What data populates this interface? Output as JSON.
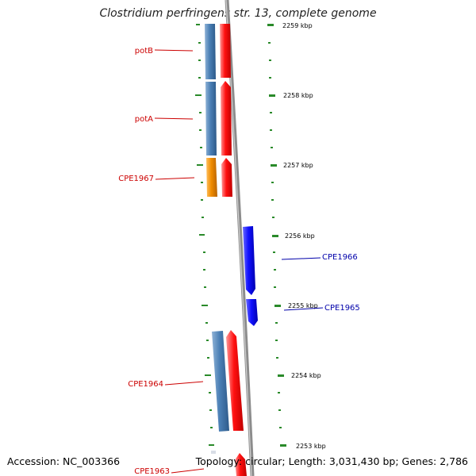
{
  "title": "Clostridium perfringens str. 13, complete genome",
  "footer": {
    "accession": "Accession: NC_003366",
    "topology": "Topology: circular; Length: 3,031,430 bp; Genes: 2,786"
  },
  "scale_labels": [
    "2259 kbp",
    "2258 kbp",
    "2257 kbp",
    "2256 kbp",
    "2255 kbp",
    "2254 kbp",
    "2253 kbp"
  ],
  "genes": [
    {
      "name": "potB",
      "color": "#cc0000"
    },
    {
      "name": "potA",
      "color": "#cc0000"
    },
    {
      "name": "CPE1967",
      "color": "#cc0000"
    },
    {
      "name": "CPE1966",
      "color": "#0000aa"
    },
    {
      "name": "CPE1965",
      "color": "#0000aa"
    },
    {
      "name": "CPE1964",
      "color": "#cc0000"
    },
    {
      "name": "CPE1963",
      "color": "#cc0000"
    }
  ],
  "colors": {
    "cds_forward": "#ff1a1a",
    "cds_reverse": "#1a1aff",
    "gene_block": "#4a7fb5",
    "gene_block_orange": "#f08c00",
    "backbone": "#888888",
    "tick": "#2a8a2a"
  }
}
